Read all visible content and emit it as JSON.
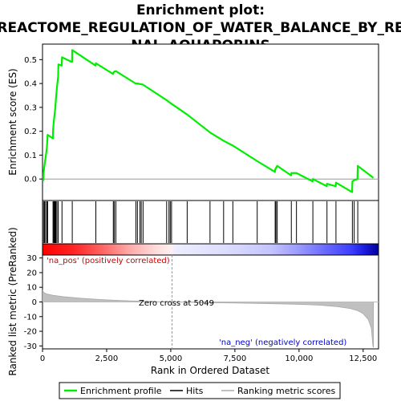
{
  "chart_data": {
    "type": "line",
    "title_lines": [
      "Enrichment plot:",
      "REACTOME_REGULATION_OF_WATER_BALANCE_BY_RE",
      "NAL_AQUAPORINS"
    ],
    "xlabel": "Rank in Ordered Dataset",
    "es_ylabel": "Enrichment score (ES)",
    "metric_ylabel": "Ranked list metric (PreRanked)",
    "xlim": [
      0,
      13100
    ],
    "es_ylim": [
      -0.09,
      0.565
    ],
    "metric_ylim": [
      -32,
      32
    ],
    "x_ticks": [
      0,
      2500,
      5000,
      7500,
      10000,
      12500
    ],
    "x_tick_labels": [
      "0",
      "2,500",
      "5,000",
      "7,500",
      "10,000",
      "12,500"
    ],
    "es_ticks": [
      0.0,
      0.1,
      0.2,
      0.3,
      0.4,
      0.5
    ],
    "es_tick_labels": [
      "0.0",
      "0.1",
      "0.2",
      "0.3",
      "0.4",
      "0.5"
    ],
    "metric_ticks": [
      30,
      20,
      10,
      0,
      -10,
      -20,
      -30
    ],
    "metric_tick_labels": [
      "30",
      "20",
      "10",
      "0",
      "-10",
      "-20",
      "-30"
    ],
    "hits": [
      40,
      80,
      120,
      170,
      200,
      410,
      440,
      470,
      500,
      520,
      560,
      610,
      760,
      1160,
      2080,
      2760,
      2800,
      2860,
      3640,
      3700,
      3800,
      3850,
      3920,
      4840,
      4930,
      4980,
      5030,
      5640,
      6530,
      7060,
      7420,
      8370,
      9070,
      9100,
      9150,
      9700,
      9900,
      10540,
      11090,
      11440,
      12080,
      12150,
      12290
    ],
    "es_curve": [
      [
        0,
        0.0
      ],
      [
        30,
        -0.005
      ],
      [
        40,
        0.025
      ],
      [
        80,
        0.06
      ],
      [
        120,
        0.09
      ],
      [
        170,
        0.13
      ],
      [
        200,
        0.185
      ],
      [
        405,
        0.17
      ],
      [
        410,
        0.205
      ],
      [
        440,
        0.24
      ],
      [
        470,
        0.27
      ],
      [
        500,
        0.3
      ],
      [
        520,
        0.33
      ],
      [
        560,
        0.38
      ],
      [
        610,
        0.43
      ],
      [
        620,
        0.48
      ],
      [
        750,
        0.475
      ],
      [
        760,
        0.51
      ],
      [
        1150,
        0.49
      ],
      [
        1160,
        0.54
      ],
      [
        2070,
        0.475
      ],
      [
        2080,
        0.485
      ],
      [
        2750,
        0.44
      ],
      [
        2760,
        0.445
      ],
      [
        2800,
        0.45
      ],
      [
        2860,
        0.452
      ],
      [
        3630,
        0.4
      ],
      [
        3700,
        0.4
      ],
      [
        3920,
        0.395
      ],
      [
        4840,
        0.33
      ],
      [
        5030,
        0.315
      ],
      [
        5640,
        0.27
      ],
      [
        6530,
        0.195
      ],
      [
        7060,
        0.16
      ],
      [
        7420,
        0.14
      ],
      [
        8370,
        0.075
      ],
      [
        9060,
        0.03
      ],
      [
        9070,
        0.04
      ],
      [
        9150,
        0.055
      ],
      [
        9690,
        0.015
      ],
      [
        9700,
        0.025
      ],
      [
        9900,
        0.025
      ],
      [
        10530,
        -0.01
      ],
      [
        10540,
        0.0
      ],
      [
        11080,
        -0.03
      ],
      [
        11090,
        -0.02
      ],
      [
        11430,
        -0.03
      ],
      [
        11440,
        -0.015
      ],
      [
        12070,
        -0.055
      ],
      [
        12080,
        -0.01
      ],
      [
        12150,
        -0.005
      ],
      [
        12280,
        0.0
      ],
      [
        12290,
        0.055
      ],
      [
        12900,
        0.005
      ]
    ],
    "metric_curve": [
      [
        0,
        8
      ],
      [
        50,
        6.5
      ],
      [
        150,
        5.5
      ],
      [
        400,
        4.6
      ],
      [
        800,
        3.6
      ],
      [
        1500,
        2.5
      ],
      [
        2500,
        1.4
      ],
      [
        3500,
        0.7
      ],
      [
        4500,
        0.2
      ],
      [
        5049,
        0.0
      ],
      [
        6000,
        -0.3
      ],
      [
        7000,
        -0.6
      ],
      [
        8000,
        -0.9
      ],
      [
        9000,
        -1.2
      ],
      [
        10000,
        -1.6
      ],
      [
        10800,
        -2.2
      ],
      [
        11500,
        -3.2
      ],
      [
        12000,
        -4.5
      ],
      [
        12300,
        -6.0
      ],
      [
        12500,
        -8.0
      ],
      [
        12700,
        -12
      ],
      [
        12820,
        -18
      ],
      [
        12880,
        -30
      ],
      [
        12900,
        -31
      ]
    ],
    "zero_cross_x": 5049,
    "heatmap_stops": [
      {
        "offset": 0.0,
        "color": "#ff0000"
      },
      {
        "offset": 0.09,
        "color": "#ff2222"
      },
      {
        "offset": 0.18,
        "color": "#ff6666"
      },
      {
        "offset": 0.26,
        "color": "#ffaaaa"
      },
      {
        "offset": 0.34,
        "color": "#ffdddd"
      },
      {
        "offset": 0.385,
        "color": "#fff0f0"
      },
      {
        "offset": 0.39,
        "color": "#eeeeff"
      },
      {
        "offset": 0.55,
        "color": "#dcdcff"
      },
      {
        "offset": 0.68,
        "color": "#c4c4ff"
      },
      {
        "offset": 0.76,
        "color": "#9b9bff"
      },
      {
        "offset": 0.84,
        "color": "#6a6aff"
      },
      {
        "offset": 0.92,
        "color": "#3d3dff"
      },
      {
        "offset": 0.96,
        "color": "#1a1adc"
      },
      {
        "offset": 1.0,
        "color": "#000099"
      }
    ],
    "colors": {
      "es_line": "#00ee00",
      "hit_line": "#000000",
      "metric_fill": "#c0c0c0",
      "zero_line": "#999999",
      "pos_text": "#cc0000",
      "neg_text": "#0000cc"
    }
  },
  "annotations": {
    "na_pos": "'na_pos' (positively correlated)",
    "na_neg": "'na_neg' (negatively correlated)",
    "zero_cross": "Zero cross at 5049"
  },
  "legend": {
    "enrichment_profile": "Enrichment profile",
    "hits": "Hits",
    "ranking_metric": "Ranking metric scores"
  }
}
